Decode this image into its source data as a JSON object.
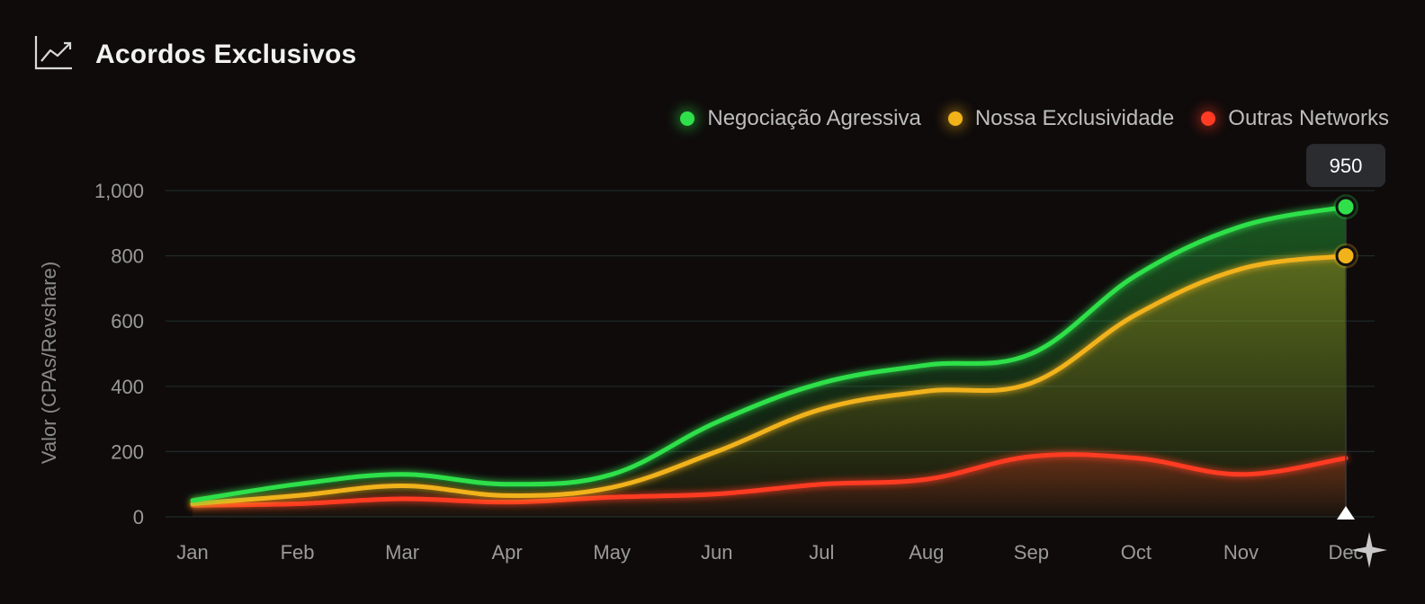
{
  "header": {
    "title": "Acordos Exclusivos",
    "icon": "trending-up-icon"
  },
  "tooltip": {
    "value": "950"
  },
  "colors": {
    "background": "#0f0b0b",
    "grid": "#1f2a2a",
    "green": "#2fe04a",
    "yellow": "#f2b21a",
    "red": "#ff3b24"
  },
  "chart_data": {
    "type": "area",
    "title": "Acordos Exclusivos",
    "xlabel": "",
    "ylabel": "Valor (CPAs/Revshare)",
    "categories": [
      "Jan",
      "Feb",
      "Mar",
      "Apr",
      "May",
      "Jun",
      "Jul",
      "Aug",
      "Sep",
      "Oct",
      "Nov",
      "Dec"
    ],
    "ylim": [
      0,
      1000
    ],
    "yticks": [
      0,
      200,
      400,
      600,
      800,
      1000
    ],
    "ytick_labels": [
      "0",
      "200",
      "400",
      "600",
      "800",
      "1,000"
    ],
    "legend_position": "top-right",
    "series": [
      {
        "name": "Negociação Agressiva",
        "color": "#2fe04a",
        "values": [
          50,
          100,
          130,
          100,
          130,
          290,
          410,
          465,
          500,
          740,
          890,
          950
        ]
      },
      {
        "name": "Nossa Exclusividade",
        "color": "#f2b21a",
        "values": [
          40,
          65,
          95,
          65,
          90,
          200,
          330,
          385,
          410,
          620,
          760,
          800
        ]
      },
      {
        "name": "Outras Networks",
        "color": "#ff3b24",
        "values": [
          35,
          40,
          55,
          45,
          60,
          70,
          100,
          115,
          185,
          180,
          130,
          180
        ]
      }
    ]
  }
}
